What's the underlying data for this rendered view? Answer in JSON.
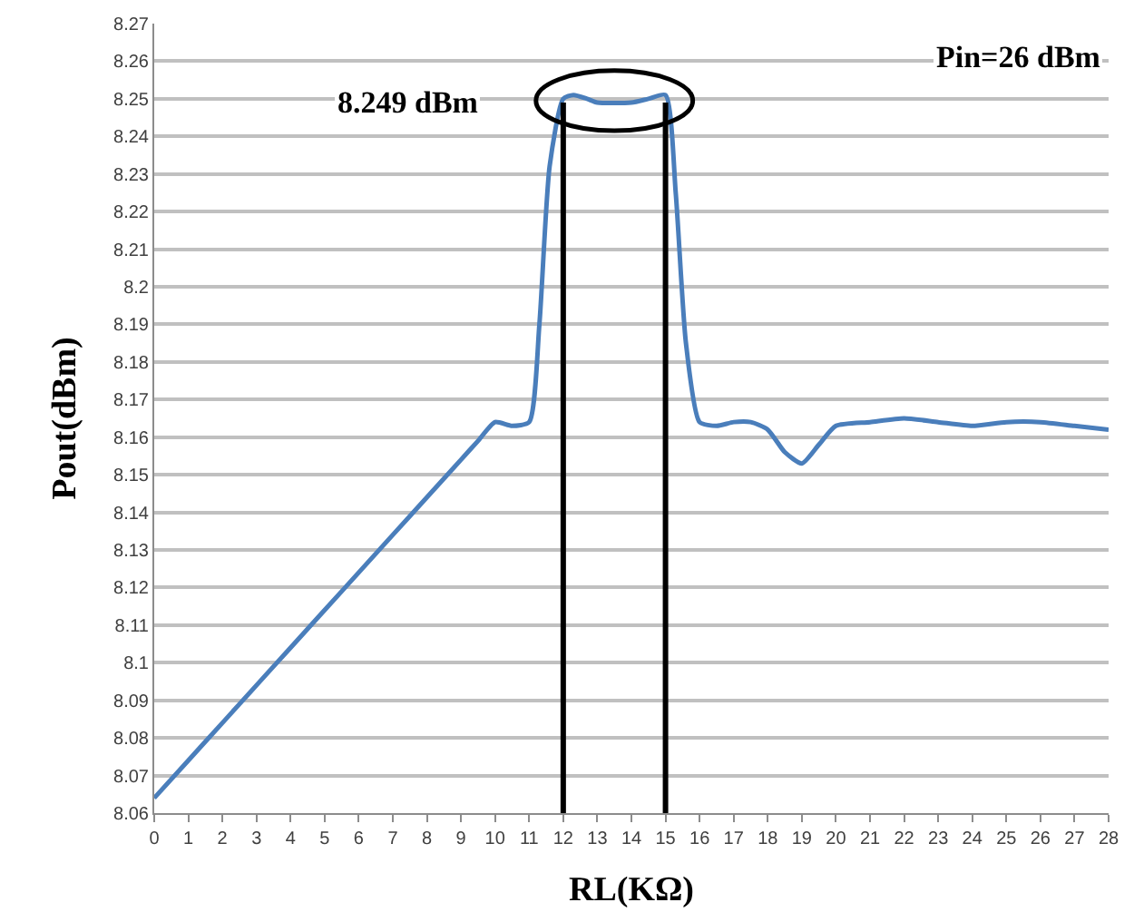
{
  "chart_data": {
    "type": "line",
    "xlabel": "RL(KΩ)",
    "ylabel": "Pout(dBm)",
    "x": [
      0,
      1,
      2,
      3,
      4,
      5,
      6,
      7,
      8,
      9,
      9.5,
      10,
      10.5,
      11,
      11.3,
      11.6,
      12,
      12.3,
      12.7,
      13,
      14,
      14.5,
      15,
      15.3,
      15.6,
      16,
      16.5,
      17,
      17.5,
      18,
      18.5,
      19,
      19.5,
      20,
      21,
      22,
      23,
      24,
      25,
      26,
      27,
      28
    ],
    "series": [
      {
        "color": "#4a7ebb",
        "values": [
          8.064,
          8.074,
          8.084,
          8.094,
          8.104,
          8.114,
          8.124,
          8.134,
          8.144,
          8.154,
          8.159,
          8.164,
          8.163,
          8.164,
          8.19,
          8.232,
          8.25,
          8.251,
          8.25,
          8.249,
          8.249,
          8.25,
          8.251,
          8.225,
          8.185,
          8.164,
          8.163,
          8.164,
          8.164,
          8.162,
          8.156,
          8.153,
          8.158,
          8.163,
          8.164,
          8.165,
          8.164,
          8.163,
          8.164,
          8.164,
          8.163,
          8.162
        ]
      }
    ],
    "xlim": [
      0,
      28
    ],
    "xticks": [
      0,
      1,
      2,
      3,
      4,
      5,
      6,
      7,
      8,
      9,
      10,
      11,
      12,
      13,
      14,
      15,
      16,
      17,
      18,
      19,
      20,
      21,
      22,
      23,
      24,
      25,
      26,
      27,
      28
    ],
    "ylim": [
      8.06,
      8.27
    ],
    "yticks": [
      8.06,
      8.07,
      8.08,
      8.09,
      8.1,
      8.11,
      8.12,
      8.13,
      8.14,
      8.15,
      8.16,
      8.17,
      8.18,
      8.19,
      8.2,
      8.21,
      8.22,
      8.23,
      8.24,
      8.25,
      8.26,
      8.27
    ],
    "grid": "y",
    "marker": "none",
    "line_style": "solid",
    "ref_lines": [
      {
        "axis": "x",
        "value": 12,
        "color": "#000000"
      },
      {
        "axis": "x",
        "value": 15,
        "color": "#000000"
      }
    ],
    "annotations": [
      {
        "text": "8.249 dBm",
        "x": 12,
        "y": 8.249
      },
      "Pin=26 dBm"
    ]
  }
}
